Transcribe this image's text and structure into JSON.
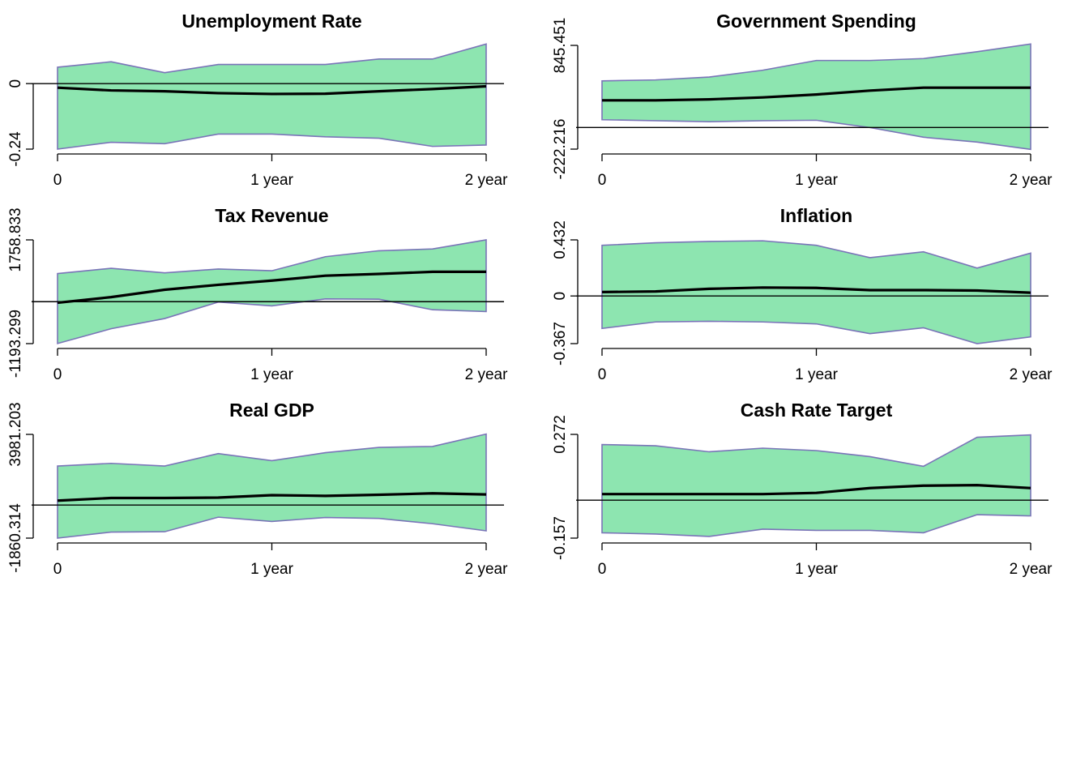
{
  "chart_data": [
    {
      "type": "area",
      "title": "Unemployment Rate",
      "x": [
        0,
        1,
        2,
        3,
        4,
        5,
        6,
        7,
        8
      ],
      "xticks": [
        0,
        4,
        8
      ],
      "xtick_labels": [
        "0",
        "1 year",
        "2 year"
      ],
      "yticks": [
        -0.24,
        0
      ],
      "ytick_labels": [
        "-0.24",
        "0"
      ],
      "ylim": [
        -0.24,
        0.14
      ],
      "reference_line": 0,
      "series": [
        {
          "role": "upper",
          "values": [
            0.06,
            0.08,
            0.04,
            0.07,
            0.07,
            0.07,
            0.09,
            0.09,
            0.145
          ]
        },
        {
          "role": "median",
          "values": [
            -0.015,
            -0.025,
            -0.028,
            -0.035,
            -0.038,
            -0.037,
            -0.028,
            -0.02,
            -0.01
          ]
        },
        {
          "role": "lower",
          "values": [
            -0.24,
            -0.215,
            -0.22,
            -0.185,
            -0.185,
            -0.195,
            -0.2,
            -0.23,
            -0.225
          ]
        }
      ],
      "fill_color": "#8de5b0",
      "band_edge_color": "#7a74b8",
      "line_color": "#000000"
    },
    {
      "type": "area",
      "title": "Government Spending",
      "x": [
        0,
        1,
        2,
        3,
        4,
        5,
        6,
        7,
        8
      ],
      "xticks": [
        0,
        4,
        8
      ],
      "xtick_labels": [
        "0",
        "1 year",
        "2 year"
      ],
      "yticks": [
        -222.216,
        845.451
      ],
      "ytick_labels": [
        "-222.216",
        "845.451"
      ],
      "ylim": [
        -222.216,
        845.451
      ],
      "reference_line": 0,
      "series": [
        {
          "role": "upper",
          "values": [
            480,
            490,
            520,
            590,
            690,
            690,
            710,
            780,
            860
          ]
        },
        {
          "role": "median",
          "values": [
            280,
            280,
            290,
            310,
            340,
            380,
            410,
            410,
            410
          ]
        },
        {
          "role": "lower",
          "values": [
            80,
            70,
            60,
            70,
            75,
            0,
            -100,
            -150,
            -225
          ]
        }
      ],
      "fill_color": "#8de5b0",
      "band_edge_color": "#7a74b8",
      "line_color": "#000000"
    },
    {
      "type": "area",
      "title": "Tax Revenue",
      "x": [
        0,
        1,
        2,
        3,
        4,
        5,
        6,
        7,
        8
      ],
      "xticks": [
        0,
        4,
        8
      ],
      "xtick_labels": [
        "0",
        "1 year",
        "2 year"
      ],
      "yticks": [
        -1193.299,
        1758.833
      ],
      "ytick_labels": [
        "-1193.299",
        "1758.833"
      ],
      "ylim": [
        -1193.299,
        1758.833
      ],
      "reference_line": 0,
      "series": [
        {
          "role": "upper",
          "values": [
            800,
            950,
            820,
            930,
            880,
            1280,
            1450,
            1500,
            1760
          ]
        },
        {
          "role": "median",
          "values": [
            -30,
            130,
            340,
            480,
            600,
            740,
            790,
            850,
            850
          ]
        },
        {
          "role": "lower",
          "values": [
            -1190,
            -770,
            -480,
            -10,
            -120,
            80,
            70,
            -230,
            -280
          ]
        }
      ],
      "fill_color": "#8de5b0",
      "band_edge_color": "#7a74b8",
      "line_color": "#000000"
    },
    {
      "type": "area",
      "title": "Inflation",
      "x": [
        0,
        1,
        2,
        3,
        4,
        5,
        6,
        7,
        8
      ],
      "xticks": [
        0,
        4,
        8
      ],
      "xtick_labels": [
        "0",
        "1 year",
        "2 year"
      ],
      "yticks": [
        -0.367,
        0,
        0.432
      ],
      "ytick_labels": [
        "-0.367",
        "0",
        "0.432"
      ],
      "ylim": [
        -0.367,
        0.432
      ],
      "reference_line": 0,
      "series": [
        {
          "role": "upper",
          "values": [
            0.39,
            0.41,
            0.42,
            0.425,
            0.39,
            0.295,
            0.34,
            0.215,
            0.33
          ]
        },
        {
          "role": "median",
          "values": [
            0.03,
            0.035,
            0.055,
            0.065,
            0.062,
            0.045,
            0.045,
            0.042,
            0.025
          ]
        },
        {
          "role": "lower",
          "values": [
            -0.25,
            -0.2,
            -0.195,
            -0.2,
            -0.215,
            -0.29,
            -0.245,
            -0.367,
            -0.315
          ]
        }
      ],
      "fill_color": "#8de5b0",
      "band_edge_color": "#7a74b8",
      "line_color": "#000000"
    },
    {
      "type": "area",
      "title": "Real GDP",
      "x": [
        0,
        1,
        2,
        3,
        4,
        5,
        6,
        7,
        8
      ],
      "xticks": [
        0,
        4,
        8
      ],
      "xtick_labels": [
        "0",
        "1 year",
        "2 year"
      ],
      "yticks": [
        -1860.314,
        3981.203
      ],
      "ytick_labels": [
        "-1860.314",
        "3981.203"
      ],
      "ylim": [
        -1860.314,
        3981.203
      ],
      "reference_line": 0,
      "series": [
        {
          "role": "upper",
          "values": [
            2200,
            2350,
            2200,
            2900,
            2500,
            2950,
            3250,
            3300,
            4000
          ]
        },
        {
          "role": "median",
          "values": [
            250,
            400,
            400,
            420,
            560,
            520,
            580,
            660,
            600
          ]
        },
        {
          "role": "lower",
          "values": [
            -1860,
            -1520,
            -1500,
            -680,
            -920,
            -700,
            -750,
            -1050,
            -1450
          ]
        }
      ],
      "fill_color": "#8de5b0",
      "band_edge_color": "#7a74b8",
      "line_color": "#000000"
    },
    {
      "type": "area",
      "title": "Cash Rate Target",
      "x": [
        0,
        1,
        2,
        3,
        4,
        5,
        6,
        7,
        8
      ],
      "xticks": [
        0,
        4,
        8
      ],
      "xtick_labels": [
        "0",
        "1 year",
        "2 year"
      ],
      "yticks": [
        -0.157,
        0.272
      ],
      "ytick_labels": [
        "-0.157",
        "0.272"
      ],
      "ylim": [
        -0.157,
        0.272
      ],
      "reference_line": 0,
      "series": [
        {
          "role": "upper",
          "values": [
            0.23,
            0.225,
            0.2,
            0.215,
            0.205,
            0.18,
            0.14,
            0.26,
            0.27
          ]
        },
        {
          "role": "median",
          "values": [
            0.025,
            0.025,
            0.025,
            0.025,
            0.03,
            0.05,
            0.06,
            0.062,
            0.05
          ]
        },
        {
          "role": "lower",
          "values": [
            -0.135,
            -0.14,
            -0.15,
            -0.12,
            -0.125,
            -0.125,
            -0.135,
            -0.06,
            -0.065
          ]
        }
      ],
      "fill_color": "#8de5b0",
      "band_edge_color": "#7a74b8",
      "line_color": "#000000"
    }
  ]
}
